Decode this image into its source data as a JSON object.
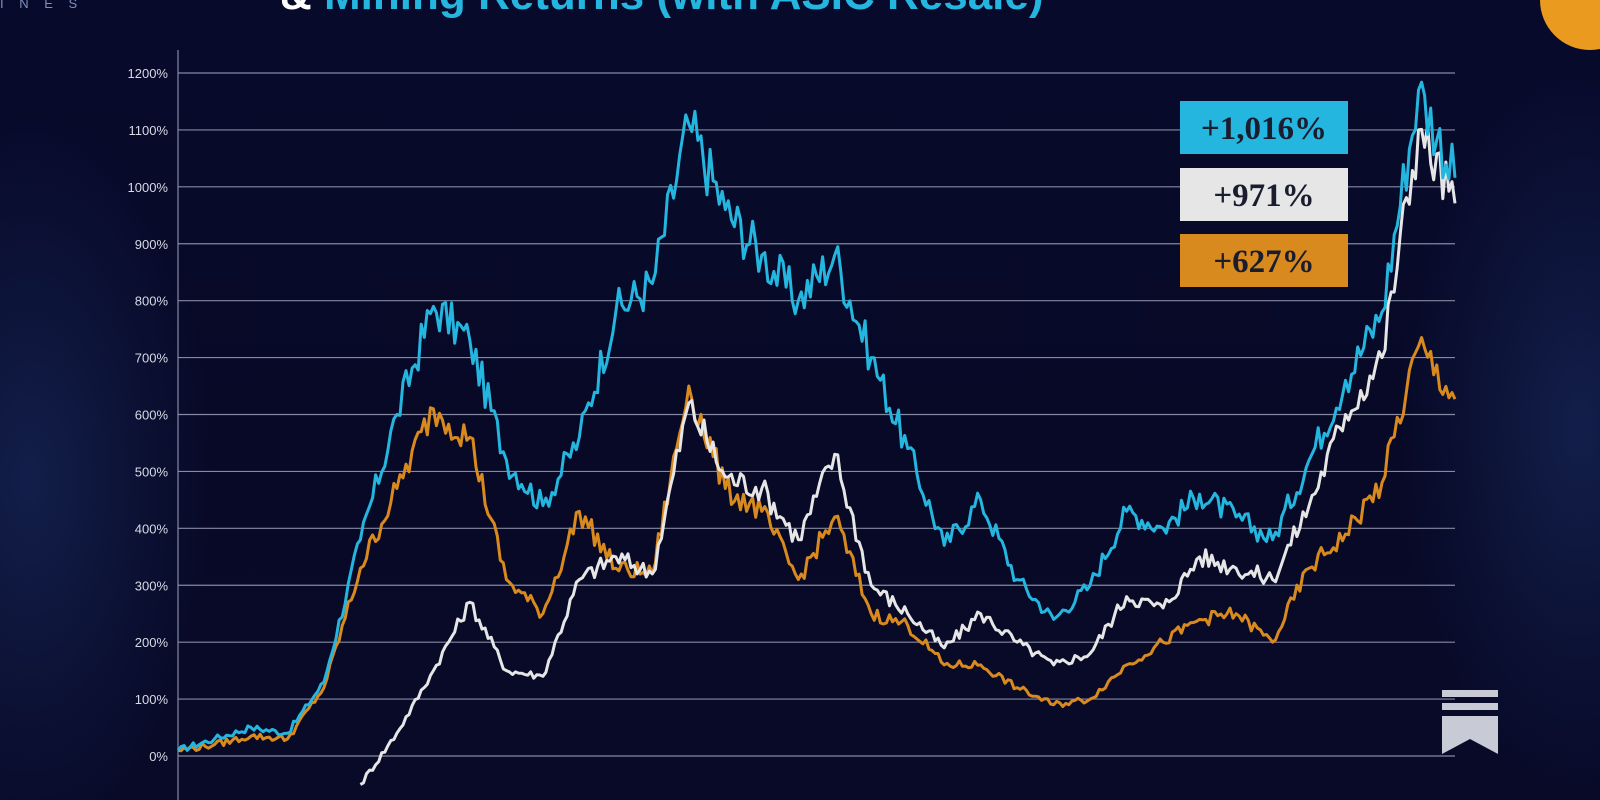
{
  "header": {
    "brand": "I N E S",
    "title_part1": "& ",
    "title_part2": "Mining Returns (with ASIC Resale)"
  },
  "colors": {
    "background": "#07092a",
    "blue": "#25b6e0",
    "white": "#e6e6e6",
    "orange": "#d98a1e",
    "corner_accent": "#e99a1f"
  },
  "icons": [
    "substack-icon"
  ],
  "chart_data": {
    "type": "line",
    "title": "& Mining Returns (with ASIC Resale)",
    "xlabel": "",
    "ylabel": "",
    "ylim": [
      -50,
      1220
    ],
    "yticks": [
      "0%",
      "100%",
      "200%",
      "300%",
      "400%",
      "500%",
      "600%",
      "700%",
      "800%",
      "900%",
      "1000%",
      "1100%",
      "1200%"
    ],
    "grid": true,
    "x_points": 36,
    "series": [
      {
        "color": "#25b6e0",
        "values": [
          10,
          30,
          50,
          40,
          130,
          380,
          600,
          790,
          730,
          520,
          440,
          560,
          780,
          830,
          1110,
          960,
          880,
          800,
          880,
          700,
          540,
          370,
          450,
          310,
          240,
          300,
          430,
          400,
          460,
          420,
          380,
          520,
          660,
          780,
          1170,
          1016
        ]
      },
      {
        "color": "#e6e6e6",
        "values": [
          null,
          null,
          null,
          null,
          null,
          -50,
          40,
          150,
          270,
          150,
          140,
          310,
          350,
          320,
          620,
          490,
          470,
          380,
          530,
          300,
          250,
          190,
          250,
          200,
          160,
          180,
          280,
          260,
          350,
          330,
          310,
          440,
          600,
          700,
          1100,
          971
        ]
      },
      {
        "color": "#d98a1e",
        "values": [
          10,
          20,
          35,
          30,
          120,
          330,
          470,
          610,
          560,
          310,
          250,
          430,
          330,
          320,
          650,
          470,
          430,
          310,
          420,
          250,
          230,
          160,
          160,
          120,
          90,
          100,
          160,
          200,
          240,
          250,
          200,
          330,
          390,
          480,
          720,
          627
        ]
      }
    ],
    "callouts": [
      {
        "text": "+1,016%",
        "bg": "#25b6e0"
      },
      {
        "text": "+971%",
        "bg": "#e6e6e6"
      },
      {
        "text": "+627%",
        "bg": "#d98a1e"
      }
    ]
  }
}
